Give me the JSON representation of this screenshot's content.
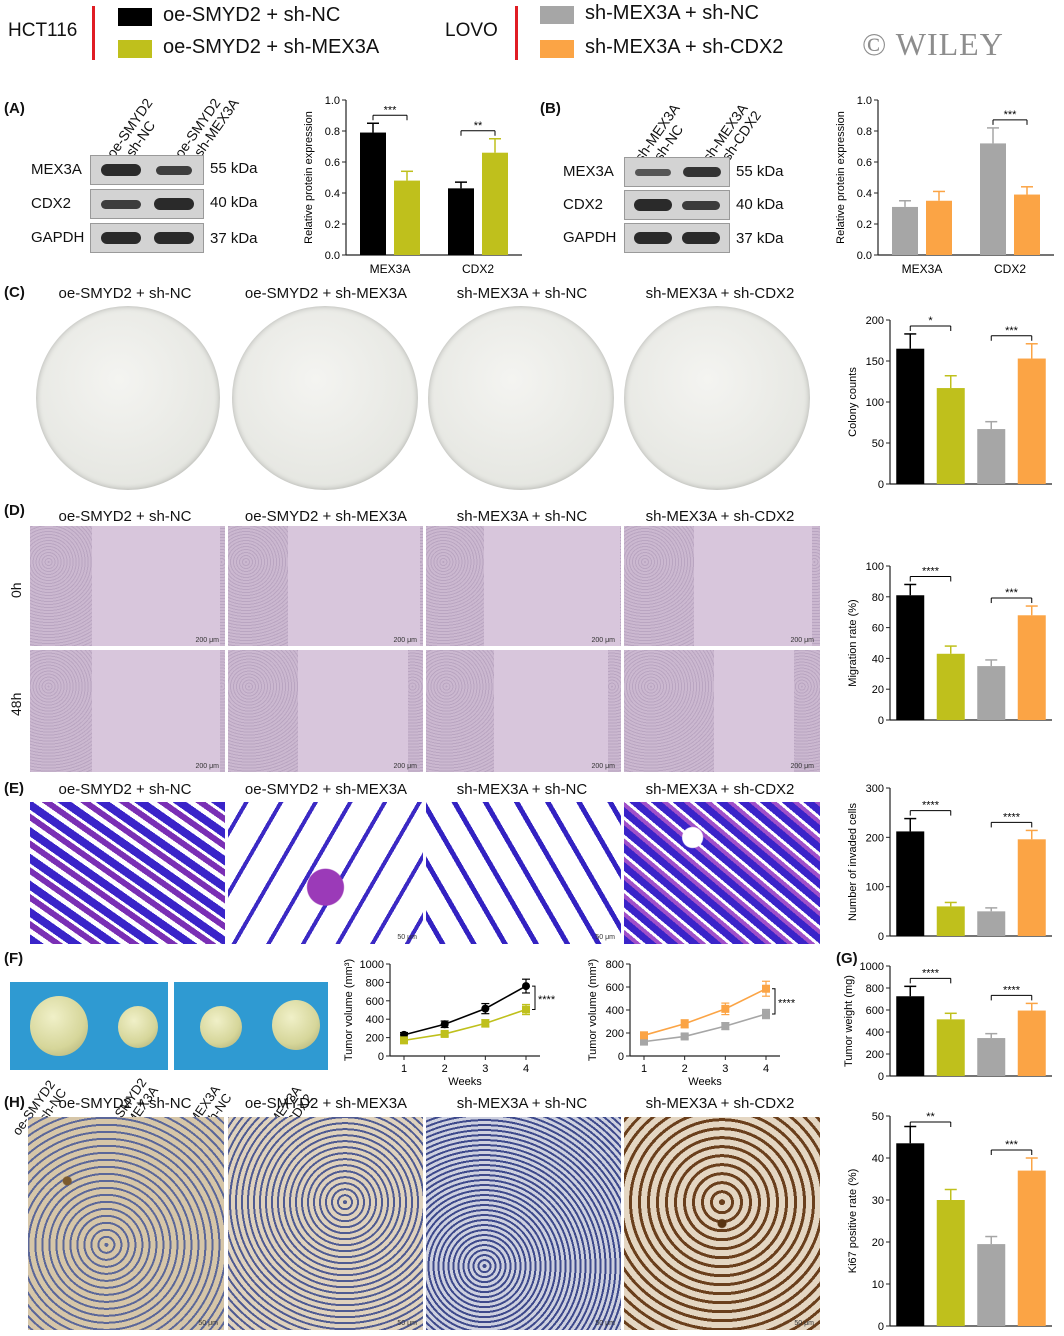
{
  "legend": {
    "group1": "HCT116",
    "group2": "LOVO",
    "items": [
      {
        "label": "oe-SMYD2 + sh-NC",
        "color": "#000000"
      },
      {
        "label": "oe-SMYD2 + sh-MEX3A",
        "color": "#bfc01c"
      },
      {
        "label": "sh-MEX3A + sh-NC",
        "color": "#a6a6a6"
      },
      {
        "label": "sh-MEX3A + sh-CDX2",
        "color": "#fba445"
      }
    ],
    "watermark": "© WILEY"
  },
  "panels": {
    "A": "(A)",
    "B": "(B)",
    "C": "(C)",
    "D": "(D)",
    "E": "(E)",
    "F": "(F)",
    "G": "(G)",
    "H": "(H)"
  },
  "blotA": {
    "lanes": [
      "oe-SMYD2\n+ sh-NC",
      "oe-SMYD2\n+ sh-MEX3A"
    ],
    "proteins": [
      "MEX3A",
      "CDX2",
      "GAPDH"
    ],
    "sizes": [
      "55 kDa",
      "40 kDa",
      "37 kDa"
    ]
  },
  "blotB": {
    "lanes": [
      "sh-MEX3A\n+ sh-NC",
      "sh-MEX3A\n+ sh-CDX2"
    ],
    "proteins": [
      "MEX3A",
      "CDX2",
      "GAPDH"
    ],
    "sizes": [
      "55 kDa",
      "40 kDa",
      "37 kDa"
    ]
  },
  "group_headers": [
    "oe-SMYD2 + sh-NC",
    "oe-SMYD2 + sh-MEX3A",
    "sh-MEX3A + sh-NC",
    "sh-MEX3A + sh-CDX2"
  ],
  "wound": {
    "times": [
      "0h",
      "48h"
    ],
    "scale": "200 μm"
  },
  "invasion": {
    "scale": "50 μm"
  },
  "tumors": {
    "labels": [
      "oe-SMYD2\n+ sh-NC",
      "oe-SMYD2\n+ sh-MEX3A",
      "sh-MEX3A\n+ sh-NC",
      "sh-MEX3A\n+ sh-CDX2"
    ]
  },
  "ihc": {
    "scale": "50 μm"
  },
  "chart_data": [
    {
      "id": "A",
      "type": "bar",
      "categories": [
        "MEX3A",
        "CDX2"
      ],
      "ylabel": "Relative protein expression",
      "ylim": [
        0,
        1.0
      ],
      "ticks": [
        0.0,
        0.2,
        0.4,
        0.6,
        0.8,
        1.0
      ],
      "series": [
        {
          "color": "#000000",
          "values": [
            0.79,
            0.43
          ],
          "errors": [
            0.06,
            0.04
          ]
        },
        {
          "color": "#bfc01c",
          "values": [
            0.48,
            0.66
          ],
          "errors": [
            0.06,
            0.09
          ]
        }
      ],
      "sig": [
        {
          "cat": 0,
          "text": "***"
        },
        {
          "cat": 1,
          "text": "**"
        }
      ]
    },
    {
      "id": "B",
      "type": "bar",
      "categories": [
        "MEX3A",
        "CDX2"
      ],
      "ylabel": "Relative protein expression",
      "ylim": [
        0,
        1.0
      ],
      "ticks": [
        0.0,
        0.2,
        0.4,
        0.6,
        0.8,
        1.0
      ],
      "series": [
        {
          "color": "#a6a6a6",
          "values": [
            0.31,
            0.72
          ],
          "errors": [
            0.04,
            0.1
          ]
        },
        {
          "color": "#fba445",
          "values": [
            0.35,
            0.39
          ],
          "errors": [
            0.06,
            0.05
          ]
        }
      ],
      "sig": [
        {
          "cat": 1,
          "text": "***"
        }
      ]
    },
    {
      "id": "C",
      "type": "bar",
      "ylabel": "Colony counts",
      "ylim": [
        0,
        200
      ],
      "ticks": [
        0,
        50,
        100,
        150,
        200
      ],
      "values": [
        165,
        117,
        67,
        153
      ],
      "errors": [
        18,
        15,
        9,
        18
      ],
      "colors": [
        "#000000",
        "#bfc01c",
        "#a6a6a6",
        "#fba445"
      ],
      "sig": [
        {
          "pair": [
            0,
            1
          ],
          "text": "*"
        },
        {
          "pair": [
            2,
            3
          ],
          "text": "***"
        }
      ]
    },
    {
      "id": "D",
      "type": "bar",
      "ylabel": "Migration rate (%)",
      "ylim": [
        0,
        100
      ],
      "ticks": [
        0,
        20,
        40,
        60,
        80,
        100
      ],
      "values": [
        81,
        43,
        35,
        68
      ],
      "errors": [
        7,
        5,
        4,
        6
      ],
      "colors": [
        "#000000",
        "#bfc01c",
        "#a6a6a6",
        "#fba445"
      ],
      "sig": [
        {
          "pair": [
            0,
            1
          ],
          "text": "****"
        },
        {
          "pair": [
            2,
            3
          ],
          "text": "***"
        }
      ]
    },
    {
      "id": "E",
      "type": "bar",
      "ylabel": "Number of invaded cells",
      "ylim": [
        0,
        300
      ],
      "ticks": [
        0,
        100,
        200,
        300
      ],
      "values": [
        212,
        60,
        50,
        196
      ],
      "errors": [
        26,
        8,
        7,
        18
      ],
      "colors": [
        "#000000",
        "#bfc01c",
        "#a6a6a6",
        "#fba445"
      ],
      "sig": [
        {
          "pair": [
            0,
            1
          ],
          "text": "****"
        },
        {
          "pair": [
            2,
            3
          ],
          "text": "****"
        }
      ]
    },
    {
      "id": "F1",
      "type": "line",
      "x": [
        1,
        2,
        3,
        4
      ],
      "xlabel": "Weeks",
      "ylabel": "Tumor volume (mm³)",
      "ylim": [
        0,
        1000
      ],
      "ticks": [
        0,
        200,
        400,
        600,
        800,
        1000
      ],
      "series": [
        {
          "color": "#000000",
          "values": [
            230,
            345,
            515,
            760
          ],
          "errors": [
            25,
            35,
            55,
            75
          ]
        },
        {
          "color": "#bfc01c",
          "values": [
            170,
            240,
            355,
            505
          ],
          "errors": [
            20,
            25,
            40,
            55
          ]
        }
      ],
      "sig": "****"
    },
    {
      "id": "F2",
      "type": "line",
      "x": [
        1,
        2,
        3,
        4
      ],
      "xlabel": "Weeks",
      "ylabel": "Tumor volume (mm³)",
      "ylim": [
        0,
        800
      ],
      "ticks": [
        0,
        200,
        400,
        600,
        800
      ],
      "series": [
        {
          "color": "#a6a6a6",
          "values": [
            125,
            170,
            260,
            365
          ],
          "errors": [
            15,
            20,
            30,
            40
          ]
        },
        {
          "color": "#fba445",
          "values": [
            180,
            280,
            410,
            585
          ],
          "errors": [
            18,
            35,
            50,
            65
          ]
        }
      ],
      "sig": "****"
    },
    {
      "id": "G",
      "type": "bar",
      "ylabel": "Tumor weight (mg)",
      "ylim": [
        0,
        1000
      ],
      "ticks": [
        0,
        200,
        400,
        600,
        800,
        1000
      ],
      "values": [
        725,
        515,
        345,
        595
      ],
      "errors": [
        90,
        55,
        40,
        65
      ],
      "colors": [
        "#000000",
        "#bfc01c",
        "#a6a6a6",
        "#fba445"
      ],
      "sig": [
        {
          "pair": [
            0,
            1
          ],
          "text": "****"
        },
        {
          "pair": [
            2,
            3
          ],
          "text": "****"
        }
      ]
    },
    {
      "id": "H",
      "type": "bar",
      "ylabel": "Ki67 positive rate (%)",
      "ylim": [
        0,
        50
      ],
      "ticks": [
        0,
        10,
        20,
        30,
        40,
        50
      ],
      "values": [
        43.5,
        30,
        19.5,
        37
      ],
      "errors": [
        4,
        2.5,
        1.8,
        3
      ],
      "colors": [
        "#000000",
        "#bfc01c",
        "#a6a6a6",
        "#fba445"
      ],
      "sig": [
        {
          "pair": [
            0,
            1
          ],
          "text": "**"
        },
        {
          "pair": [
            2,
            3
          ],
          "text": "***"
        }
      ]
    }
  ]
}
